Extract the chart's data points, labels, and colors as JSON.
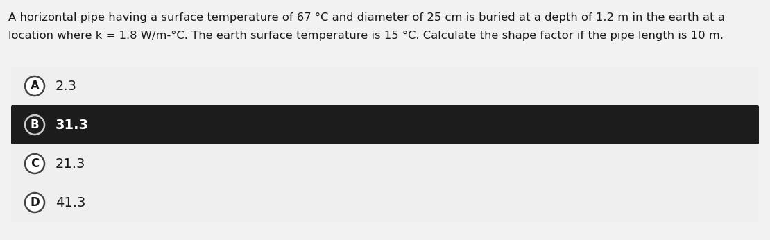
{
  "question_line1": "A horizontal pipe having a surface temperature of 67 °C and diameter of 25 cm is buried at a depth of 1.2 m in the earth at a",
  "question_line2": "location where k = 1.8 W/m-°C. The earth surface temperature is 15 °C. Calculate the shape factor if the pipe length is 10 m.",
  "options": [
    {
      "label": "A",
      "text": "2.3",
      "selected": false
    },
    {
      "label": "B",
      "text": "31.3",
      "selected": true
    },
    {
      "label": "C",
      "text": "21.3",
      "selected": false
    },
    {
      "label": "D",
      "text": "41.3",
      "selected": false
    }
  ],
  "background_color": "#f2f2f2",
  "option_bg_normal": "#efefef",
  "option_bg_selected": "#1c1c1c",
  "option_text_normal": "#1a1a1a",
  "option_text_selected": "#ffffff",
  "circle_bg_normal": "#ffffff",
  "circle_bg_selected": "#1c1c1c",
  "circle_border_normal": "#444444",
  "circle_border_selected": "#cccccc",
  "question_text_color": "#1a1a1a",
  "question_fontsize": 11.8,
  "option_fontsize": 14,
  "option_label_fontsize": 12
}
